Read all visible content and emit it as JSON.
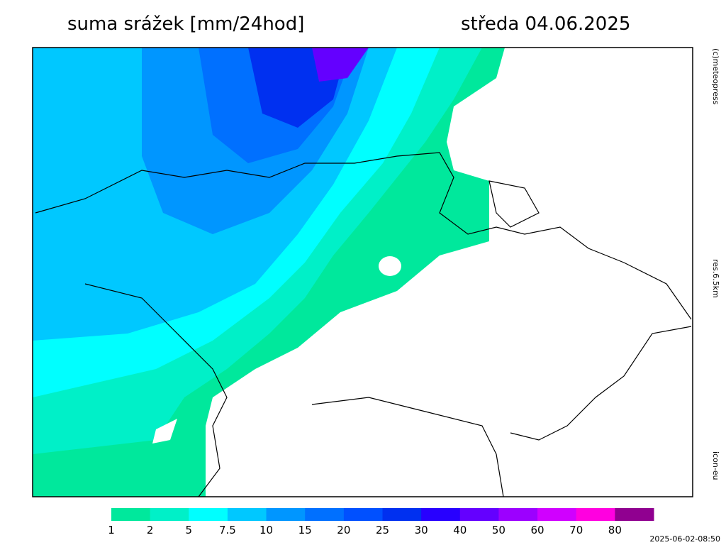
{
  "header": {
    "title": "suma srážek [mm/24hod]",
    "date": "středa 04.06.2025"
  },
  "side_labels": {
    "copyright": "(c)meteopress",
    "resolution": "res.6.5km",
    "model": "icon-eu"
  },
  "timestamp": "2025-06-02-08:50",
  "legend": [
    {
      "value": 1,
      "color": "#00e89c"
    },
    {
      "value": 2,
      "color": "#00f0c8"
    },
    {
      "value": 5,
      "color": "#00ffff"
    },
    {
      "value": 7.5,
      "color": "#00c8ff"
    },
    {
      "value": 10,
      "color": "#0096ff"
    },
    {
      "value": 15,
      "color": "#0070ff"
    },
    {
      "value": 20,
      "color": "#0050ff"
    },
    {
      "value": 25,
      "color": "#0030f0"
    },
    {
      "value": 30,
      "color": "#2800ff"
    },
    {
      "value": 40,
      "color": "#6400ff"
    },
    {
      "value": 50,
      "color": "#9c00ff"
    },
    {
      "value": 60,
      "color": "#d000ff"
    },
    {
      "value": 70,
      "color": "#ff00e0"
    },
    {
      "value": 80,
      "color": "#900090"
    }
  ]
}
